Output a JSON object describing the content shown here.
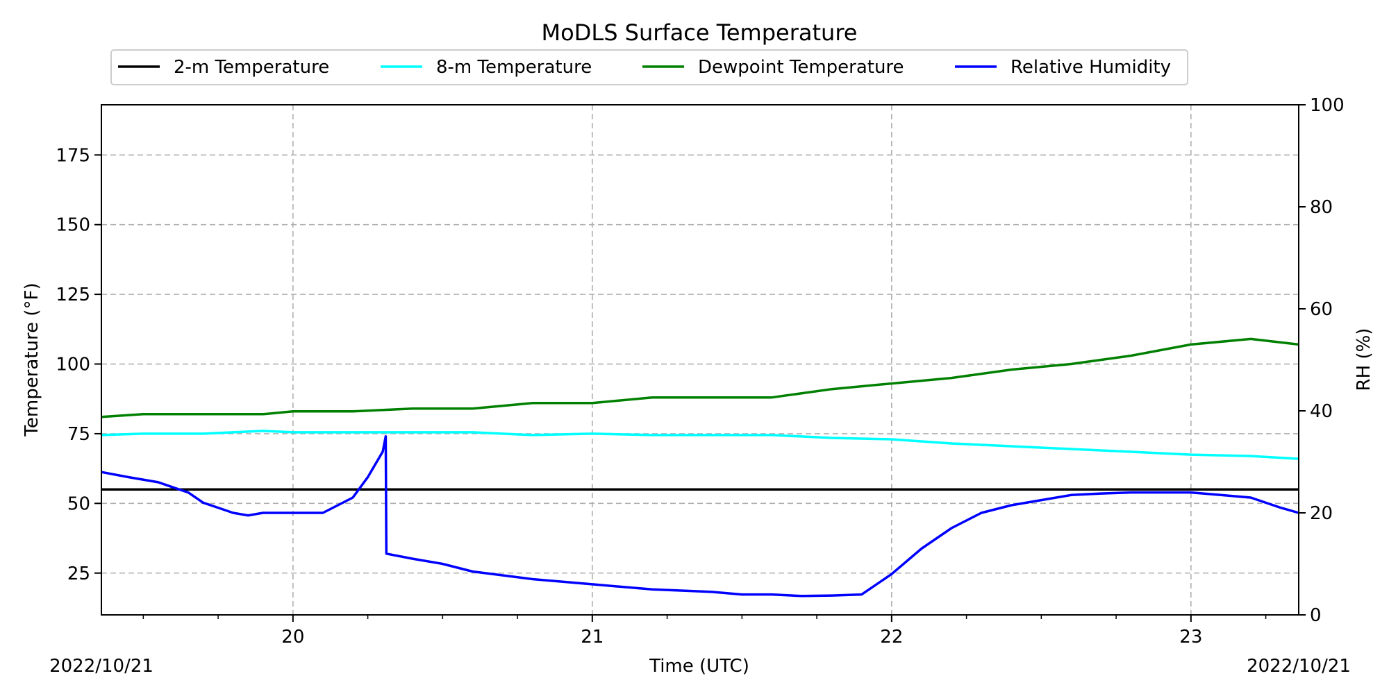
{
  "chart_data": {
    "type": "line",
    "title": "MoDLS Surface Temperature",
    "xlabel": "Time (UTC)",
    "ylabel": "Temperature ($^\\circ$F)",
    "ylabel_display": "Temperature (°F)",
    "y2label": "RH (%)",
    "x_unit": "hour (UTC), 2022/10/21",
    "xlim": [
      19.36,
      23.36
    ],
    "ylim": [
      10,
      193
    ],
    "y2lim": [
      0,
      100
    ],
    "xticks": [
      20,
      21,
      22,
      23
    ],
    "yticks": [
      25,
      50,
      75,
      100,
      125,
      150,
      175
    ],
    "y2ticks": [
      0,
      20,
      40,
      60,
      80,
      100
    ],
    "date_left": "2022/10/21",
    "date_right": "2022/10/21",
    "grid": true,
    "legend_position": "top-center",
    "series": [
      {
        "name": "2-m Temperature",
        "color": "#000000",
        "axis": "left",
        "x": [
          19.36,
          23.36
        ],
        "y": [
          55,
          55
        ]
      },
      {
        "name": "8-m Temperature",
        "color": "#00ffff",
        "axis": "left",
        "x": [
          19.36,
          19.5,
          19.7,
          19.9,
          20.0,
          20.2,
          20.4,
          20.6,
          20.8,
          21.0,
          21.2,
          21.4,
          21.6,
          21.8,
          22.0,
          22.2,
          22.4,
          22.6,
          22.8,
          23.0,
          23.2,
          23.36
        ],
        "y": [
          74.5,
          75,
          75,
          76,
          75.5,
          75.5,
          75.5,
          75.5,
          74.5,
          75,
          74.5,
          74.5,
          74.5,
          73.5,
          73,
          71.5,
          70.5,
          69.5,
          68.5,
          67.5,
          67,
          66
        ]
      },
      {
        "name": "Dewpoint Temperature",
        "color": "#008000",
        "axis": "left",
        "x": [
          19.36,
          19.5,
          19.7,
          19.9,
          20.0,
          20.2,
          20.4,
          20.6,
          20.8,
          21.0,
          21.2,
          21.4,
          21.6,
          21.8,
          22.0,
          22.2,
          22.4,
          22.6,
          22.8,
          23.0,
          23.2,
          23.36
        ],
        "y": [
          81,
          82,
          82,
          82,
          83,
          83,
          84,
          84,
          86,
          86,
          88,
          88,
          88,
          91,
          93,
          95,
          98,
          100,
          103,
          107,
          109,
          107
        ]
      },
      {
        "name": "Relative Humidity",
        "color": "#0000ff",
        "axis": "right",
        "x": [
          19.36,
          19.45,
          19.55,
          19.6,
          19.65,
          19.7,
          19.75,
          19.8,
          19.85,
          19.9,
          20.0,
          20.1,
          20.2,
          20.25,
          20.3,
          20.31,
          20.312,
          20.4,
          20.5,
          20.6,
          20.8,
          21.0,
          21.2,
          21.4,
          21.5,
          21.6,
          21.7,
          21.8,
          21.9,
          22.0,
          22.1,
          22.2,
          22.3,
          22.4,
          22.5,
          22.6,
          22.7,
          22.8,
          22.9,
          23.0,
          23.1,
          23.2,
          23.3,
          23.36
        ],
        "y": [
          28,
          27,
          26,
          25,
          24,
          22,
          21,
          20,
          19.5,
          20,
          20,
          20,
          23,
          27,
          32,
          35,
          12,
          11,
          10,
          8.5,
          7,
          6,
          5,
          4.5,
          4,
          4,
          3.7,
          3.8,
          4,
          8,
          13,
          17,
          20,
          21.5,
          22.5,
          23.5,
          23.8,
          24,
          24,
          24,
          23.5,
          23,
          21,
          20
        ]
      }
    ]
  }
}
